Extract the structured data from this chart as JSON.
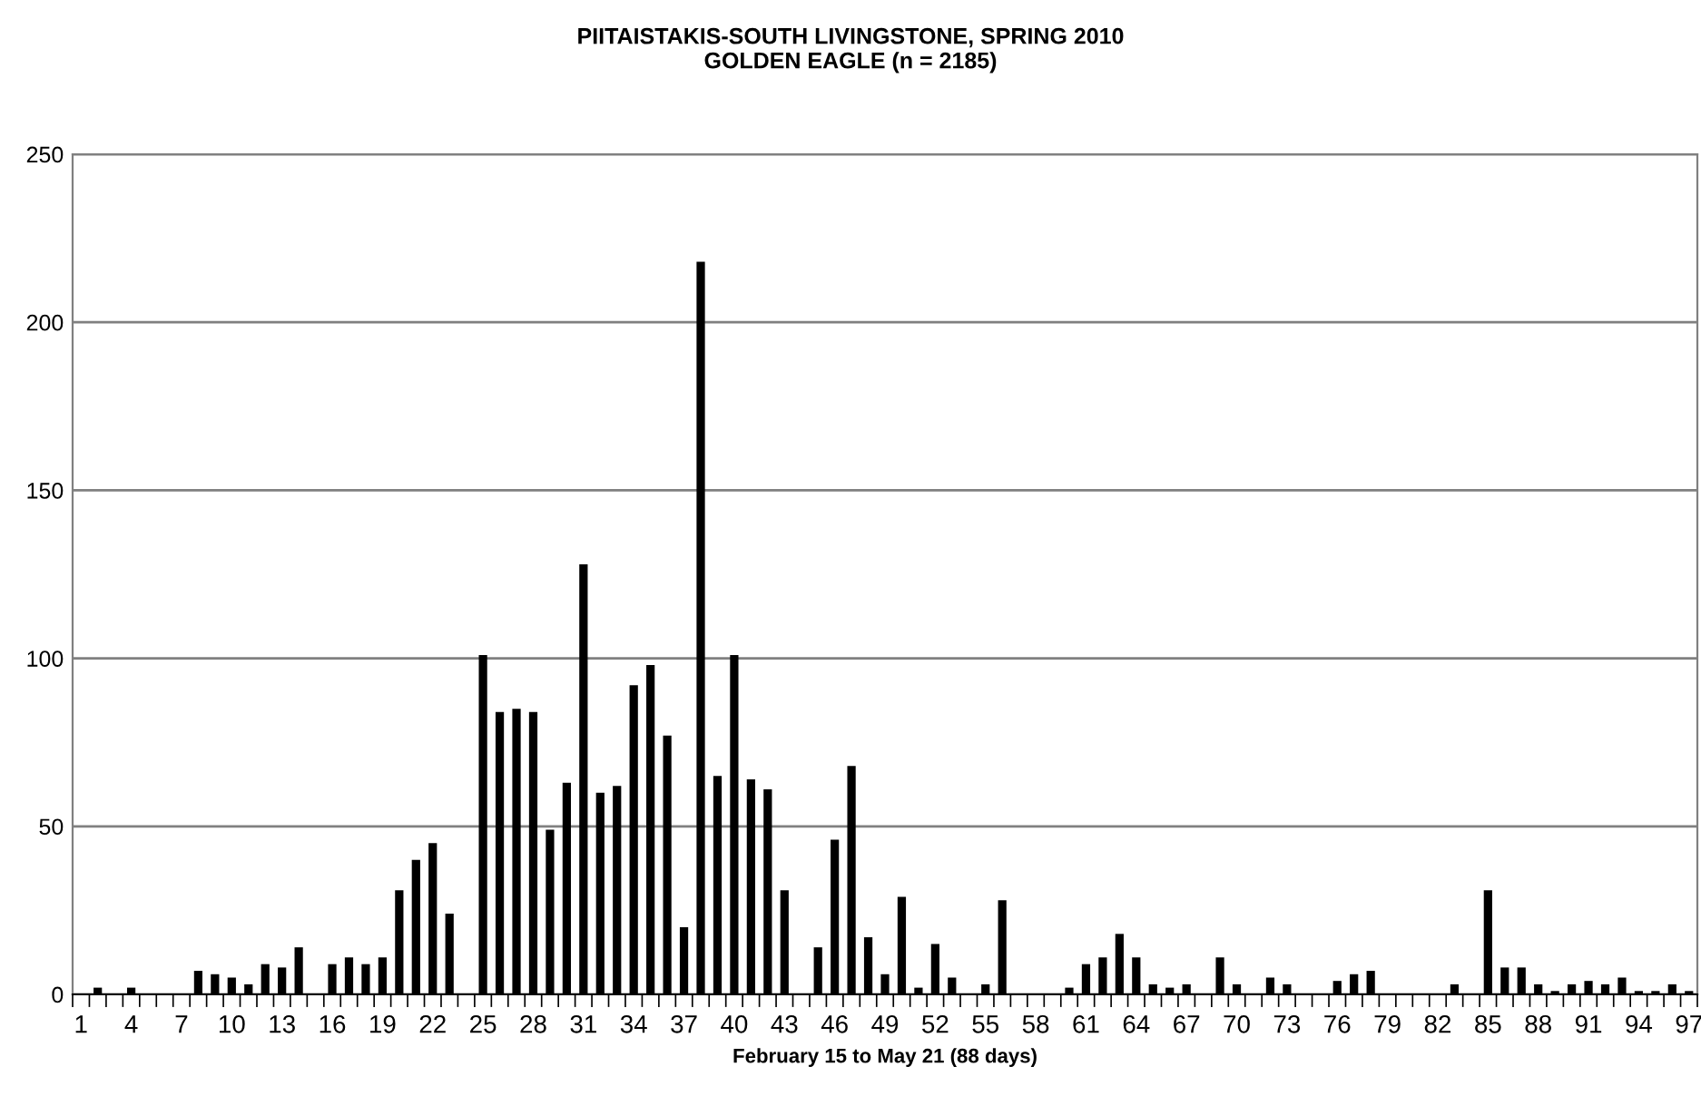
{
  "chart_data": {
    "type": "bar",
    "title": "PIITAISTAKIS-SOUTH LIVINGSTONE, SPRING 2010\nGOLDEN EAGLE (n = 2185)",
    "xlabel": "February 15 to May 21 (88 days)",
    "categories": [
      "1",
      null,
      null,
      "4",
      null,
      null,
      "7",
      null,
      null,
      "10",
      null,
      null,
      "13",
      null,
      null,
      "16",
      null,
      null,
      "19",
      null,
      null,
      "22",
      null,
      null,
      "25",
      null,
      null,
      "28",
      null,
      null,
      "31",
      null,
      null,
      "34",
      null,
      null,
      "37",
      null,
      null,
      "40",
      null,
      null,
      "43",
      null,
      null,
      "46",
      null,
      null,
      "49",
      null,
      null,
      "52",
      null,
      null,
      "55",
      null,
      null,
      "58",
      null,
      null,
      "61",
      null,
      null,
      "64",
      null,
      null,
      "67",
      null,
      null,
      "70",
      null,
      null,
      "73",
      null,
      null,
      "76",
      null,
      null,
      "79",
      null,
      null,
      "82",
      null,
      null,
      "85",
      null,
      null,
      "88",
      null,
      null,
      "91",
      null,
      null,
      "94",
      null,
      null,
      "97"
    ],
    "values": [
      0,
      2,
      0,
      2,
      0,
      0,
      0,
      7,
      6,
      5,
      3,
      9,
      8,
      14,
      0,
      9,
      11,
      9,
      11,
      31,
      40,
      45,
      24,
      0,
      101,
      84,
      85,
      84,
      49,
      63,
      128,
      60,
      62,
      92,
      98,
      77,
      20,
      218,
      65,
      101,
      64,
      61,
      31,
      0,
      14,
      46,
      68,
      17,
      6,
      29,
      2,
      15,
      5,
      0,
      3,
      28,
      0,
      0,
      0,
      2,
      9,
      11,
      18,
      11,
      3,
      2,
      3,
      0,
      11,
      3,
      0,
      5,
      3,
      0,
      0,
      4,
      6,
      7,
      0,
      0,
      0,
      0,
      3,
      0,
      31,
      8,
      8,
      3,
      1,
      3,
      4,
      3,
      5,
      1,
      1,
      3,
      1
    ],
    "color": "#000000",
    "ylim": [
      0,
      250
    ],
    "yticks": [
      0,
      50,
      100,
      150,
      200,
      250
    ],
    "grid": "y"
  }
}
